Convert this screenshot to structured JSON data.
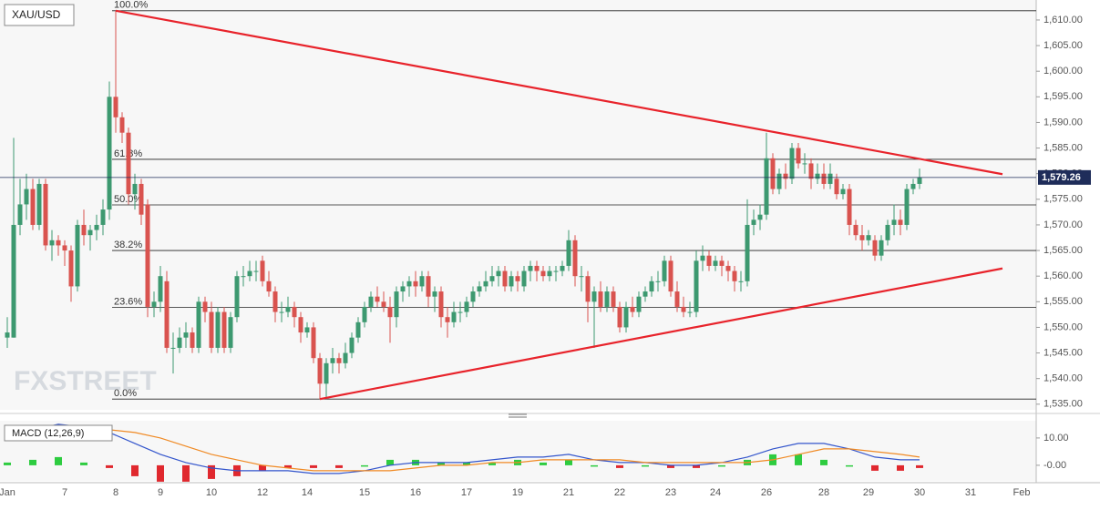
{
  "chart_data": [
    {
      "type": "candlestick",
      "title": "XAU/USD",
      "categories": [
        "Jan",
        null,
        null,
        null,
        null,
        null,
        null,
        null,
        null,
        "7",
        null,
        null,
        null,
        null,
        null,
        null,
        null,
        "8",
        null,
        null,
        null,
        null,
        null,
        null,
        "9",
        null,
        null,
        null,
        null,
        null,
        null,
        null,
        "10",
        null,
        null,
        null,
        null,
        null,
        null,
        null,
        "12",
        null,
        null,
        null,
        null,
        null,
        null,
        "14",
        null,
        null,
        null,
        null,
        null,
        null,
        null,
        null,
        "15",
        null,
        null,
        null,
        null,
        null,
        null,
        null,
        "16",
        null,
        null,
        null,
        null,
        null,
        null,
        null,
        "17",
        null,
        null,
        null,
        null,
        null,
        null,
        null,
        "19",
        null,
        null,
        null,
        null,
        null,
        null,
        null,
        "21",
        null,
        null,
        null,
        null,
        null,
        null,
        null,
        "22",
        null,
        null,
        null,
        null,
        null,
        null,
        null,
        "23",
        null,
        null,
        null,
        null,
        null,
        null,
        "24",
        null,
        null,
        null,
        null,
        null,
        null,
        null,
        "26",
        null,
        null,
        null,
        null,
        null,
        null,
        null,
        null,
        "28",
        null,
        null,
        null,
        null,
        null,
        null,
        "29",
        null,
        null,
        null,
        null,
        null,
        null,
        null,
        "30",
        null,
        null,
        null,
        null,
        null,
        null,
        null,
        "31",
        null,
        null,
        null,
        null,
        null,
        null,
        null,
        "Feb"
      ],
      "open": [
        1548,
        1548,
        1570,
        1574,
        1577,
        1570,
        1578,
        1566,
        1567,
        1566,
        1565,
        1558,
        1570,
        1568,
        1569,
        1570,
        1573,
        1595,
        1591,
        1588,
        1576,
        1578,
        1574,
        1554,
        1555,
        1559,
        1546,
        1546,
        1548,
        1549,
        1546,
        1555,
        1553,
        1546,
        1553,
        1546,
        1552,
        1560,
        1560,
        1561,
        1563,
        1559,
        1557,
        1553,
        1553,
        1554,
        1552,
        1549,
        1550,
        1544,
        1539,
        1543,
        1544,
        1543,
        1545,
        1548,
        1551,
        1554,
        1556,
        1555,
        1554,
        1552,
        1557,
        1558,
        1559,
        1558,
        1560,
        1556,
        1557,
        1552,
        1551,
        1553,
        1553,
        1555,
        1557,
        1558,
        1559,
        1560,
        1561,
        1558,
        1560,
        1558,
        1561,
        1562,
        1561,
        1560,
        1561,
        1561,
        1562,
        1567,
        1560,
        1560,
        1555,
        1557,
        1554,
        1557,
        1554,
        1550,
        1554,
        1553,
        1556,
        1557,
        1559,
        1559,
        1563,
        1557,
        1554,
        1553,
        1553,
        1563,
        1564,
        1562,
        1563,
        1562,
        1561,
        1559,
        1559,
        1570,
        1571,
        1572,
        1583,
        1577,
        1580,
        1579,
        1585,
        1582,
        1582,
        1579,
        1580,
        1578,
        1579,
        1576,
        1577,
        1570,
        1568,
        1567,
        1567,
        1564,
        1567,
        1570,
        1571,
        1570,
        1577,
        1578,
        null,
        null,
        null,
        null,
        null,
        null,
        null,
        null,
        null,
        null,
        null,
        null,
        null,
        null,
        null,
        null
      ],
      "high": [
        1552,
        1587,
        1579,
        1580,
        1579,
        1579,
        1579,
        1569,
        1568,
        1567,
        1566,
        1571,
        1573,
        1570,
        1572,
        1575,
        1598,
        1611.8,
        1592,
        1589,
        1580,
        1579,
        1575,
        1557,
        1562,
        1561,
        1549,
        1550,
        1551,
        1550,
        1556,
        1556,
        1555,
        1554,
        1554,
        1553,
        1561,
        1562,
        1563,
        1563,
        1564,
        1561,
        1558,
        1555,
        1556,
        1555,
        1553,
        1551,
        1551,
        1545,
        1544,
        1546,
        1545,
        1547,
        1549,
        1552,
        1555,
        1557,
        1558,
        1557,
        1556,
        1558,
        1559,
        1560,
        1561,
        1561,
        1561,
        1558,
        1558,
        1554,
        1555,
        1555,
        1556,
        1558,
        1559,
        1561,
        1562,
        1562,
        1562,
        1561,
        1561,
        1562,
        1563,
        1563,
        1562,
        1562,
        1562,
        1563,
        1569,
        1568,
        1562,
        1561,
        1558,
        1559,
        1558,
        1558,
        1555,
        1555,
        1556,
        1557,
        1558,
        1560,
        1561,
        1564,
        1564,
        1559,
        1556,
        1555,
        1565,
        1566,
        1565,
        1564,
        1564,
        1563,
        1562,
        1561,
        1575,
        1573,
        1574,
        1588,
        1584,
        1581,
        1582,
        1586,
        1586,
        1584,
        1583,
        1582,
        1582,
        1582,
        1580,
        1578,
        1578,
        1571,
        1570,
        1569,
        1568,
        1568,
        1571,
        1574,
        1573,
        1578,
        1579,
        1581,
        null,
        null,
        null,
        null,
        null,
        null,
        null,
        null,
        null,
        null,
        null,
        null,
        null,
        null,
        null,
        null
      ],
      "low": [
        1546,
        1548,
        1568,
        1571,
        1569,
        1569,
        1565,
        1563,
        1564,
        1562,
        1555,
        1557,
        1566,
        1565,
        1567,
        1568,
        1571,
        1588,
        1586,
        1574,
        1573,
        1570,
        1552,
        1552,
        1553,
        1545,
        1541,
        1545,
        1546,
        1545,
        1545,
        1551,
        1545,
        1545,
        1545,
        1545,
        1551,
        1558,
        1559,
        1559,
        1558,
        1556,
        1551,
        1551,
        1552,
        1550,
        1547,
        1548,
        1543,
        1536,
        1536,
        1541,
        1541,
        1542,
        1544,
        1547,
        1550,
        1553,
        1554,
        1553,
        1547,
        1550,
        1555,
        1556,
        1556,
        1557,
        1554,
        1553,
        1550,
        1548,
        1550,
        1551,
        1552,
        1554,
        1556,
        1557,
        1558,
        1558,
        1557,
        1557,
        1557,
        1557,
        1559,
        1559,
        1559,
        1559,
        1559,
        1560,
        1561,
        1558,
        1557,
        1551,
        1546,
        1553,
        1553,
        1553,
        1549,
        1549,
        1552,
        1552,
        1555,
        1556,
        1557,
        1558,
        1556,
        1553,
        1552,
        1552,
        1552,
        1561,
        1561,
        1561,
        1560,
        1559,
        1557,
        1557,
        1558,
        1568,
        1569,
        1571,
        1576,
        1576,
        1577,
        1578,
        1581,
        1580,
        1577,
        1578,
        1577,
        1577,
        1575,
        1575,
        1568,
        1567,
        1565,
        1566,
        1563,
        1563,
        1566,
        1568,
        1568,
        1569,
        1576,
        1577,
        null,
        null,
        null,
        null,
        null,
        null,
        null,
        null,
        null,
        null,
        null,
        null,
        null,
        null,
        null,
        null
      ],
      "close": [
        1549,
        1570,
        1574,
        1577,
        1570,
        1578,
        1566,
        1567,
        1566,
        1565,
        1558,
        1570,
        1568,
        1569,
        1570,
        1573,
        1595,
        1591,
        1588,
        1576,
        1578,
        1572,
        1554,
        1555,
        1560,
        1546,
        1546,
        1548,
        1549,
        1546,
        1555,
        1553,
        1546,
        1553,
        1546,
        1552,
        1560,
        1560,
        1561,
        1561,
        1559,
        1557,
        1553,
        1553,
        1554,
        1552,
        1549,
        1550,
        1544,
        1539,
        1543,
        1544,
        1543,
        1545,
        1548,
        1551,
        1554,
        1556,
        1555,
        1554,
        1552,
        1557,
        1558,
        1559,
        1558,
        1560,
        1556,
        1557,
        1552,
        1551,
        1553,
        1553,
        1555,
        1557,
        1558,
        1559,
        1560,
        1561,
        1558,
        1560,
        1559,
        1561,
        1562,
        1561,
        1560,
        1561,
        1561,
        1562,
        1567,
        1560,
        1560,
        1555,
        1557,
        1554,
        1557,
        1554,
        1550,
        1554,
        1553,
        1556,
        1557,
        1559,
        1559,
        1563,
        1557,
        1554,
        1553,
        1553,
        1563,
        1564,
        1562,
        1563,
        1562,
        1561,
        1559,
        1559,
        1570,
        1571,
        1572,
        1583,
        1577,
        1580,
        1579,
        1585,
        1582,
        1582,
        1579,
        1580,
        1578,
        1580,
        1576,
        1577,
        1570,
        1568,
        1567,
        1568,
        1564,
        1567,
        1570,
        1571,
        1570,
        1577,
        1578,
        1579.26,
        null,
        null,
        null,
        null,
        null,
        null,
        null,
        null,
        null,
        null,
        null,
        null,
        null,
        null,
        null,
        null
      ],
      "up_color": "#3d9970",
      "down_color": "#d9534f",
      "ylim": [
        1533.9,
        1613.9
      ],
      "yticks": [
        {
          "value": 1535,
          "label": "1,535.00"
        },
        {
          "value": 1540,
          "label": "1,540.00"
        },
        {
          "value": 1545,
          "label": "1,545.00"
        },
        {
          "value": 1550,
          "label": "1,550.00"
        },
        {
          "value": 1555,
          "label": "1,555.00"
        },
        {
          "value": 1560,
          "label": "1,560.00"
        },
        {
          "value": 1565,
          "label": "1,565.00"
        },
        {
          "value": 1570,
          "label": "1,570.00"
        },
        {
          "value": 1575,
          "label": "1,575.00"
        },
        {
          "value": 1580,
          "label": "1,580.00"
        },
        {
          "value": 1585,
          "label": "1,585.00"
        },
        {
          "value": 1590,
          "label": "1,590.00"
        },
        {
          "value": 1595,
          "label": "1,595.00"
        },
        {
          "value": 1600,
          "label": "1,600.00"
        },
        {
          "value": 1605,
          "label": "1,605.00"
        },
        {
          "value": 1610,
          "label": "1,610.00"
        }
      ],
      "last_price": {
        "value": 1579.26,
        "label": "1,579.26"
      },
      "last_price_color": "#1f2d5a",
      "fib_levels": [
        {
          "value": 1611.8,
          "label": "100.0%"
        },
        {
          "value": 1582.8,
          "label": "61.8%"
        },
        {
          "value": 1573.9,
          "label": "50.0%"
        },
        {
          "value": 1565,
          "label": "38.2%"
        },
        {
          "value": 1553.9,
          "label": "23.6%"
        },
        {
          "value": 1536,
          "label": "0.0%"
        }
      ],
      "trendlines": [
        {
          "color": "#e8232b",
          "x": [
            17,
            156
          ],
          "values": [
            1611.8,
            1579.9
          ]
        },
        {
          "color": "#e8232b",
          "x": [
            49,
            156
          ],
          "values": [
            1536,
            1561.5
          ]
        }
      ],
      "watermark": "FXSTREET"
    },
    {
      "type": "macd",
      "label": "MACD (12,26,9)",
      "x": [
        0,
        4,
        8,
        12,
        16,
        20,
        24,
        28,
        32,
        36,
        40,
        44,
        48,
        52,
        56,
        60,
        64,
        68,
        72,
        76,
        80,
        84,
        88,
        92,
        96,
        100,
        104,
        108,
        112,
        116,
        120,
        124,
        128,
        132,
        136,
        140,
        143
      ],
      "series": [
        {
          "color": "#3355cc",
          "values": [
            10,
            13,
            15,
            14,
            12,
            8,
            4,
            1,
            -1,
            -2,
            -2,
            -2,
            -3,
            -3,
            -2,
            0,
            1,
            1,
            1,
            2,
            3,
            3,
            4,
            2,
            1,
            1,
            0,
            0,
            1,
            3,
            6,
            8,
            8,
            6,
            3,
            2,
            2
          ]
        },
        {
          "color": "#f08a24",
          "values": [
            9,
            11,
            12,
            13,
            13,
            12,
            10,
            7,
            4,
            2,
            0,
            -1,
            -2,
            -2,
            -2,
            -2,
            -1,
            0,
            0,
            1,
            1,
            2,
            2,
            2,
            2,
            1,
            1,
            1,
            1,
            1,
            2,
            4,
            6,
            6,
            5,
            4,
            3
          ]
        }
      ],
      "histogram": [
        1,
        2,
        3,
        1,
        -1,
        -4,
        -6,
        -6,
        -5,
        -4,
        -2,
        -1,
        -1,
        -1,
        0,
        2,
        2,
        1,
        1,
        1,
        2,
        1,
        2,
        0,
        -1,
        0,
        -1,
        -1,
        0,
        2,
        4,
        4,
        2,
        0,
        -2,
        -2,
        -1
      ],
      "up_color": "#2ecc40",
      "down_color": "#e0282e",
      "ylim": [
        -5.7,
        16.3
      ],
      "yticks": [
        {
          "value": 10,
          "label": "10.00"
        },
        {
          "value": 0,
          "label": "-0.00"
        }
      ]
    }
  ]
}
